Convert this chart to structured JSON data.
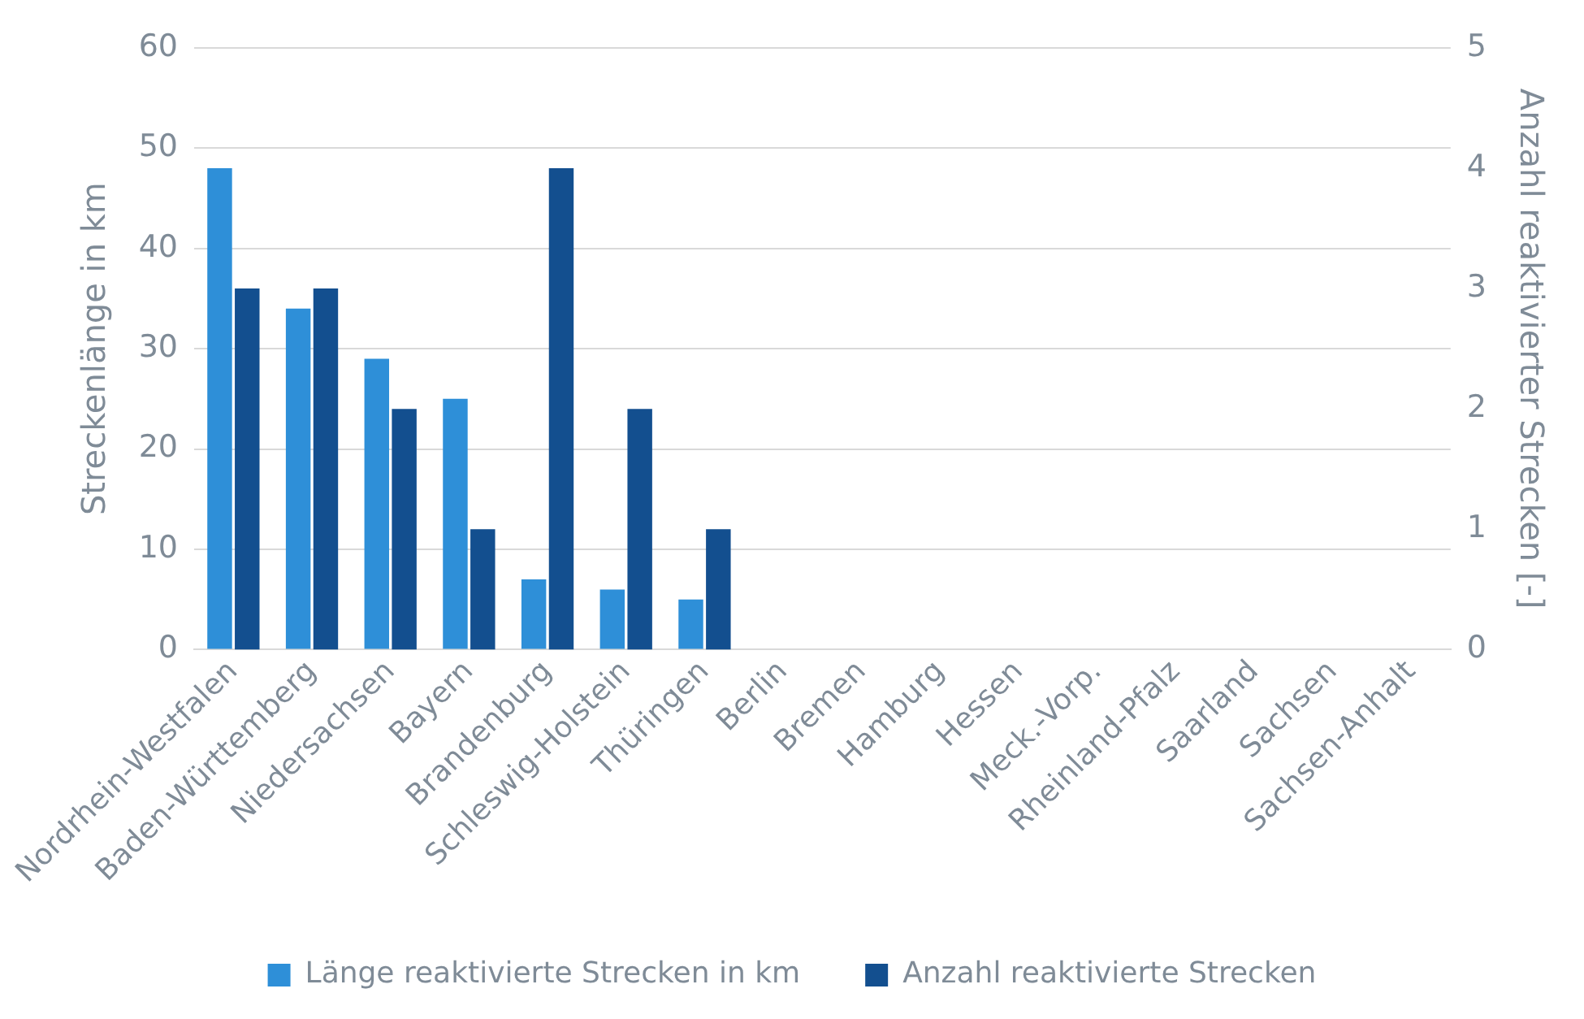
{
  "chart_data": {
    "type": "bar",
    "categories": [
      "Nordrhein-Westfalen",
      "Baden-Württemberg",
      "Niedersachsen",
      "Bayern",
      "Brandenburg",
      "Schleswig-Holstein",
      "Thüringen",
      "Berlin",
      "Bremen",
      "Hamburg",
      "Hessen",
      "Meck.-Vorp.",
      "Rheinland-Pfalz",
      "Saarland",
      "Sachsen",
      "Sachsen-Anhalt"
    ],
    "series": [
      {
        "name": "Länge reaktivierte Strecken in km",
        "color": "#2e8fd8",
        "values": [
          48,
          34,
          29,
          25,
          7,
          6,
          5,
          0,
          0,
          0,
          0,
          0,
          0,
          0,
          0,
          0
        ]
      },
      {
        "name": "Anzahl reaktivierte Strecken",
        "color": "#134f8f",
        "axis": "y2",
        "values": [
          3,
          3,
          2,
          1,
          4,
          2,
          1,
          0,
          0,
          0,
          0,
          0,
          0,
          0,
          0,
          0
        ]
      }
    ],
    "ylabel": "Streckenlänge in km",
    "y2label": "Anzahl reaktivierter Strecken [-]",
    "ylim": [
      0,
      60
    ],
    "yticks": [
      0,
      10,
      20,
      30,
      40,
      50,
      60
    ],
    "y2lim": [
      0,
      5
    ],
    "y2ticks": [
      0,
      1,
      2,
      3,
      4,
      5
    ],
    "grid": "y",
    "legend": "bottom"
  }
}
